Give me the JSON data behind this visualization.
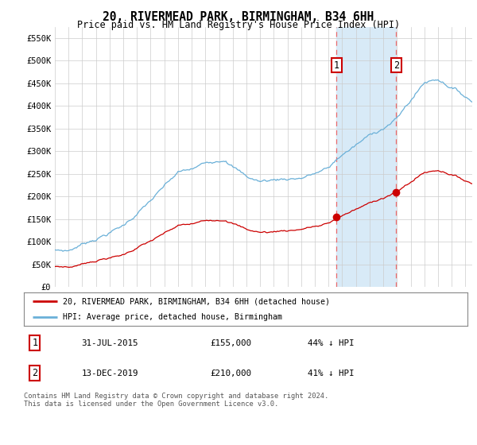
{
  "title": "20, RIVERMEAD PARK, BIRMINGHAM, B34 6HH",
  "subtitle": "Price paid vs. HM Land Registry's House Price Index (HPI)",
  "ylabel_ticks": [
    "£0",
    "£50K",
    "£100K",
    "£150K",
    "£200K",
    "£250K",
    "£300K",
    "£350K",
    "£400K",
    "£450K",
    "£500K",
    "£550K"
  ],
  "ylabel_values": [
    0,
    50000,
    100000,
    150000,
    200000,
    250000,
    300000,
    350000,
    400000,
    450000,
    500000,
    550000
  ],
  "ylim": [
    0,
    575000
  ],
  "hpi_color": "#6ab0d8",
  "price_color": "#cc0000",
  "marker1_date": 2015.58,
  "marker2_date": 2019.95,
  "marker1_price": 155000,
  "marker2_price": 210000,
  "transaction1_label": "1",
  "transaction2_label": "2",
  "legend_property": "20, RIVERMEAD PARK, BIRMINGHAM, B34 6HH (detached house)",
  "legend_hpi": "HPI: Average price, detached house, Birmingham",
  "table_row1_num": "1",
  "table_row1_date": "31-JUL-2015",
  "table_row1_price": "£155,000",
  "table_row1_hpi": "44% ↓ HPI",
  "table_row2_num": "2",
  "table_row2_date": "13-DEC-2019",
  "table_row2_price": "£210,000",
  "table_row2_hpi": "41% ↓ HPI",
  "footnote": "Contains HM Land Registry data © Crown copyright and database right 2024.\nThis data is licensed under the Open Government Licence v3.0.",
  "background_color": "#ffffff",
  "grid_color": "#cccccc",
  "shade_color": "#d8eaf7"
}
